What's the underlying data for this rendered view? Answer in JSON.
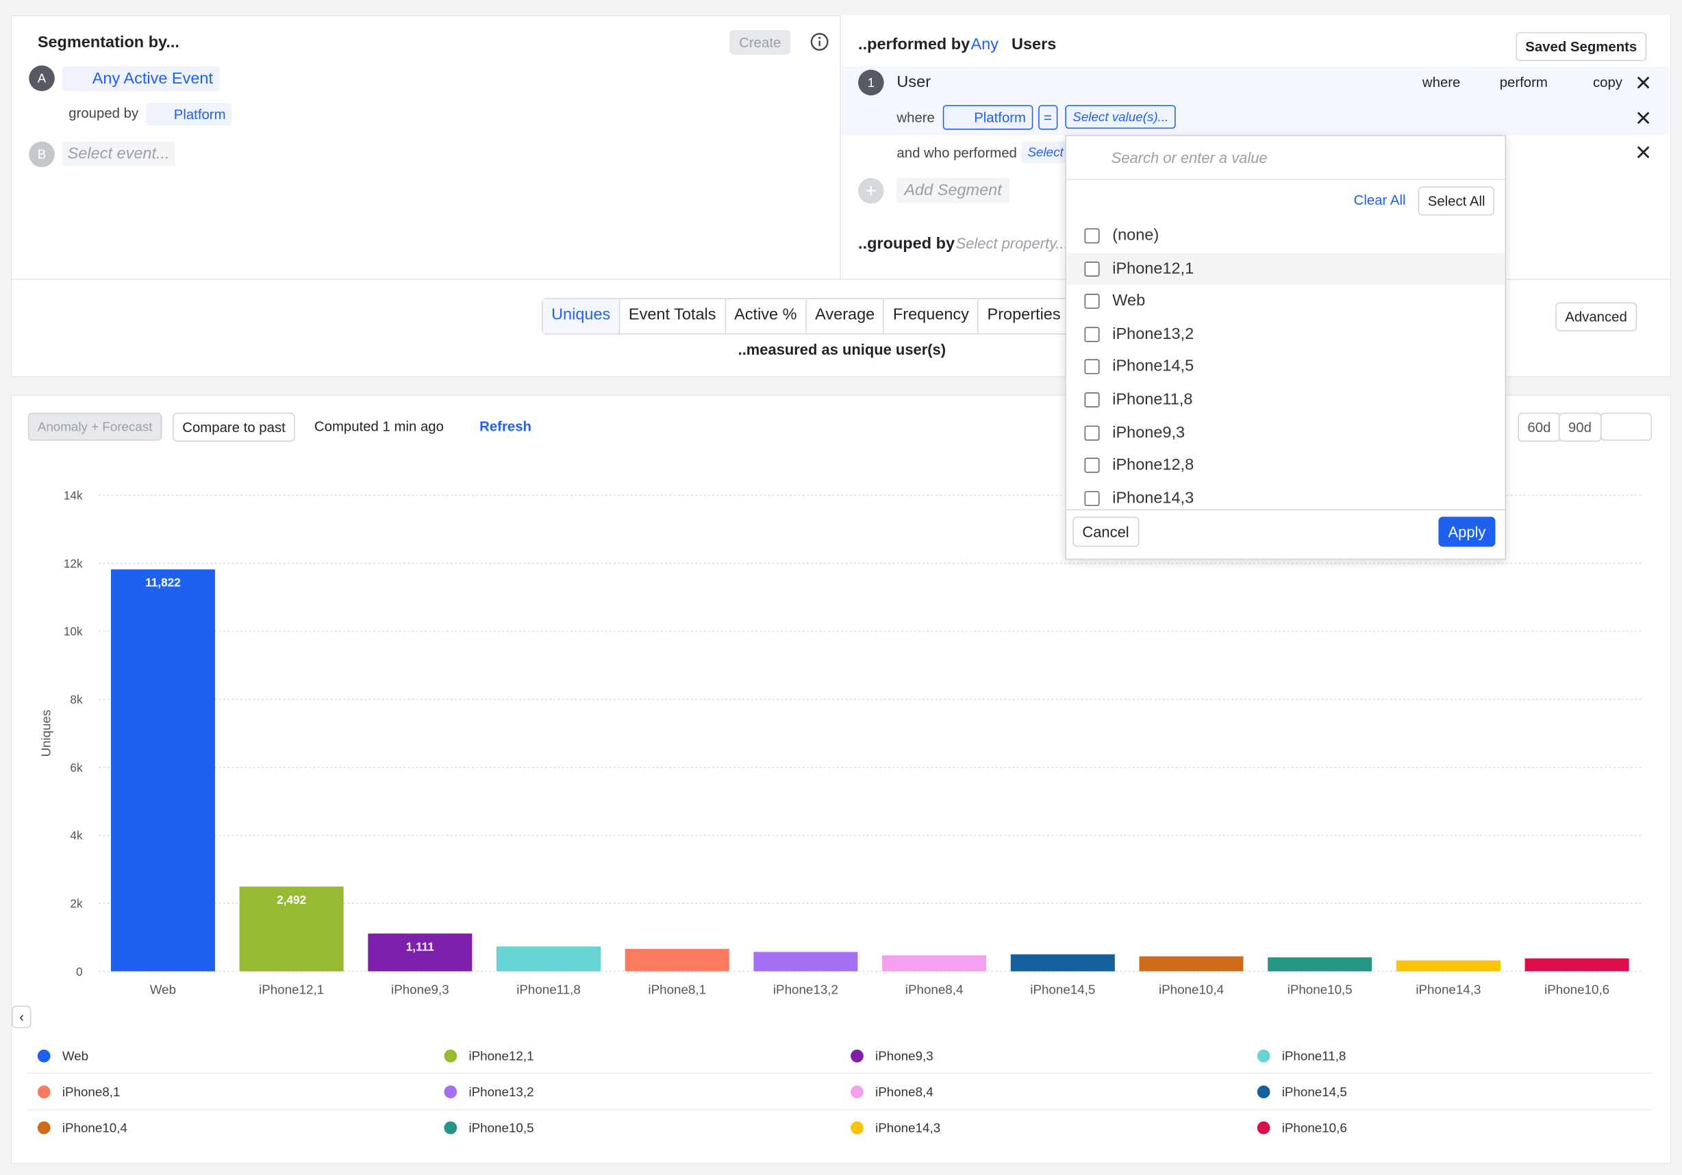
{
  "segmentation": {
    "title": "Segmentation by...",
    "create": "Create",
    "event_a": {
      "letter": "A",
      "name": "Any Active Event",
      "grouped_by_label": "grouped by",
      "grouped_by": "Platform"
    },
    "event_b": {
      "letter": "B",
      "placeholder": "Select event..."
    }
  },
  "performed": {
    "label": "..performed by",
    "any": "Any",
    "users": "Users",
    "saved_segments": "Saved Segments",
    "user_number": "1",
    "user": "User",
    "where_button": "where",
    "perform_button": "perform",
    "copy_button": "copy",
    "where": "where",
    "property": "Platform",
    "operator": "=",
    "select_values": "Select value(s)...",
    "who_performed": "and who performed",
    "select": "Select",
    "add_segment": "Add Segment",
    "grouped_by": "..grouped by",
    "select_property": "Select property..."
  },
  "dropdown": {
    "search": "Search or enter a value",
    "clear_all": "Clear All",
    "select_all": "Select All",
    "options": [
      "(none)",
      "iPhone12,1",
      "Web",
      "iPhone13,2",
      "iPhone14,5",
      "iPhone11,8",
      "iPhone9,3",
      "iPhone12,8",
      "iPhone14,3"
    ],
    "cancel": "Cancel",
    "apply": "Apply"
  },
  "metrics": {
    "tabs": [
      "Uniques",
      "Event Totals",
      "Active %",
      "Average",
      "Frequency",
      "Properties"
    ],
    "advanced": "Advanced",
    "measured": "..measured as unique user(s)"
  },
  "toolbar": {
    "anomaly": "Anomaly + Forecast",
    "compare": "Compare to past",
    "computed": "Computed 1 min ago",
    "refresh": "Refresh",
    "ranges": [
      "60d",
      "90d"
    ]
  },
  "chart_data": {
    "type": "bar",
    "ylabel": "Uniques",
    "categories": [
      "Web",
      "iPhone12,1",
      "iPhone9,3",
      "iPhone11,8",
      "iPhone8,1",
      "iPhone13,2",
      "iPhone8,4",
      "iPhone14,5",
      "iPhone10,4",
      "iPhone10,5",
      "iPhone14,3",
      "iPhone10,6"
    ],
    "values": [
      11822,
      2492,
      1111,
      730,
      660,
      570,
      470,
      500,
      440,
      410,
      320,
      380
    ],
    "value_labels": [
      "11,822",
      "2,492",
      "1,111",
      null,
      null,
      null,
      null,
      null,
      null,
      null,
      null,
      null
    ],
    "colors": [
      "#1e61f0",
      "#95bb31",
      "#7e1fab",
      "#67d3d3",
      "#fb7a60",
      "#a470f5",
      "#f5a0ee",
      "#15609b",
      "#d06b19",
      "#259683",
      "#fbc303",
      "#dc0f4a"
    ],
    "ylim": [
      0,
      14000
    ],
    "yticks": [
      0,
      {
        "value": 2000,
        "label": "2k"
      },
      {
        "value": 4000,
        "label": "4k"
      },
      {
        "value": 6000,
        "label": "6k"
      },
      {
        "value": 8000,
        "label": "8k"
      },
      {
        "value": 10000,
        "label": "10k"
      },
      {
        "value": 12000,
        "label": "12k"
      },
      {
        "value": 14000,
        "label": "14k"
      }
    ],
    "grid": true
  }
}
